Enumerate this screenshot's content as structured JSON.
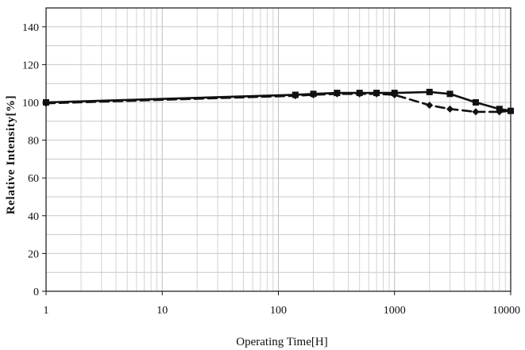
{
  "chart_data": {
    "type": "line",
    "xscale": "log",
    "xlim": [
      1,
      10000
    ],
    "ylim": [
      0,
      150
    ],
    "xticks": [
      1,
      10,
      100,
      1000,
      10000
    ],
    "yticks": [
      0,
      20,
      40,
      60,
      80,
      100,
      120,
      140
    ],
    "xtick_labels": [
      "1",
      "10",
      "100",
      "1000",
      "10000"
    ],
    "ytick_labels": [
      "0",
      "20",
      "40",
      "60",
      "80",
      "100",
      "120",
      "140"
    ],
    "xlabel": "Operating Time[H]",
    "ylabel": "Relative Intensity[%]",
    "grid": true,
    "series": [
      {
        "line_style": "solid",
        "marker": "square",
        "color": "#111111",
        "points": [
          {
            "x": 1,
            "y": 100
          },
          {
            "x": 140,
            "y": 104
          },
          {
            "x": 200,
            "y": 104.5
          },
          {
            "x": 320,
            "y": 105
          },
          {
            "x": 500,
            "y": 105
          },
          {
            "x": 700,
            "y": 105
          },
          {
            "x": 1000,
            "y": 105
          },
          {
            "x": 2000,
            "y": 105.5
          },
          {
            "x": 3000,
            "y": 104.5
          },
          {
            "x": 5000,
            "y": 100
          },
          {
            "x": 8000,
            "y": 96.5
          },
          {
            "x": 10000,
            "y": 95.5
          }
        ]
      },
      {
        "line_style": "dashed",
        "marker": "diamond",
        "color": "#111111",
        "points": [
          {
            "x": 1,
            "y": 99.5
          },
          {
            "x": 140,
            "y": 103.5
          },
          {
            "x": 200,
            "y": 104
          },
          {
            "x": 320,
            "y": 104.5
          },
          {
            "x": 500,
            "y": 104.5
          },
          {
            "x": 700,
            "y": 104.5
          },
          {
            "x": 1000,
            "y": 104
          },
          {
            "x": 2000,
            "y": 98.5
          },
          {
            "x": 3000,
            "y": 96.5
          },
          {
            "x": 5000,
            "y": 95
          },
          {
            "x": 8000,
            "y": 95
          },
          {
            "x": 10000,
            "y": 95.5
          }
        ]
      }
    ]
  }
}
